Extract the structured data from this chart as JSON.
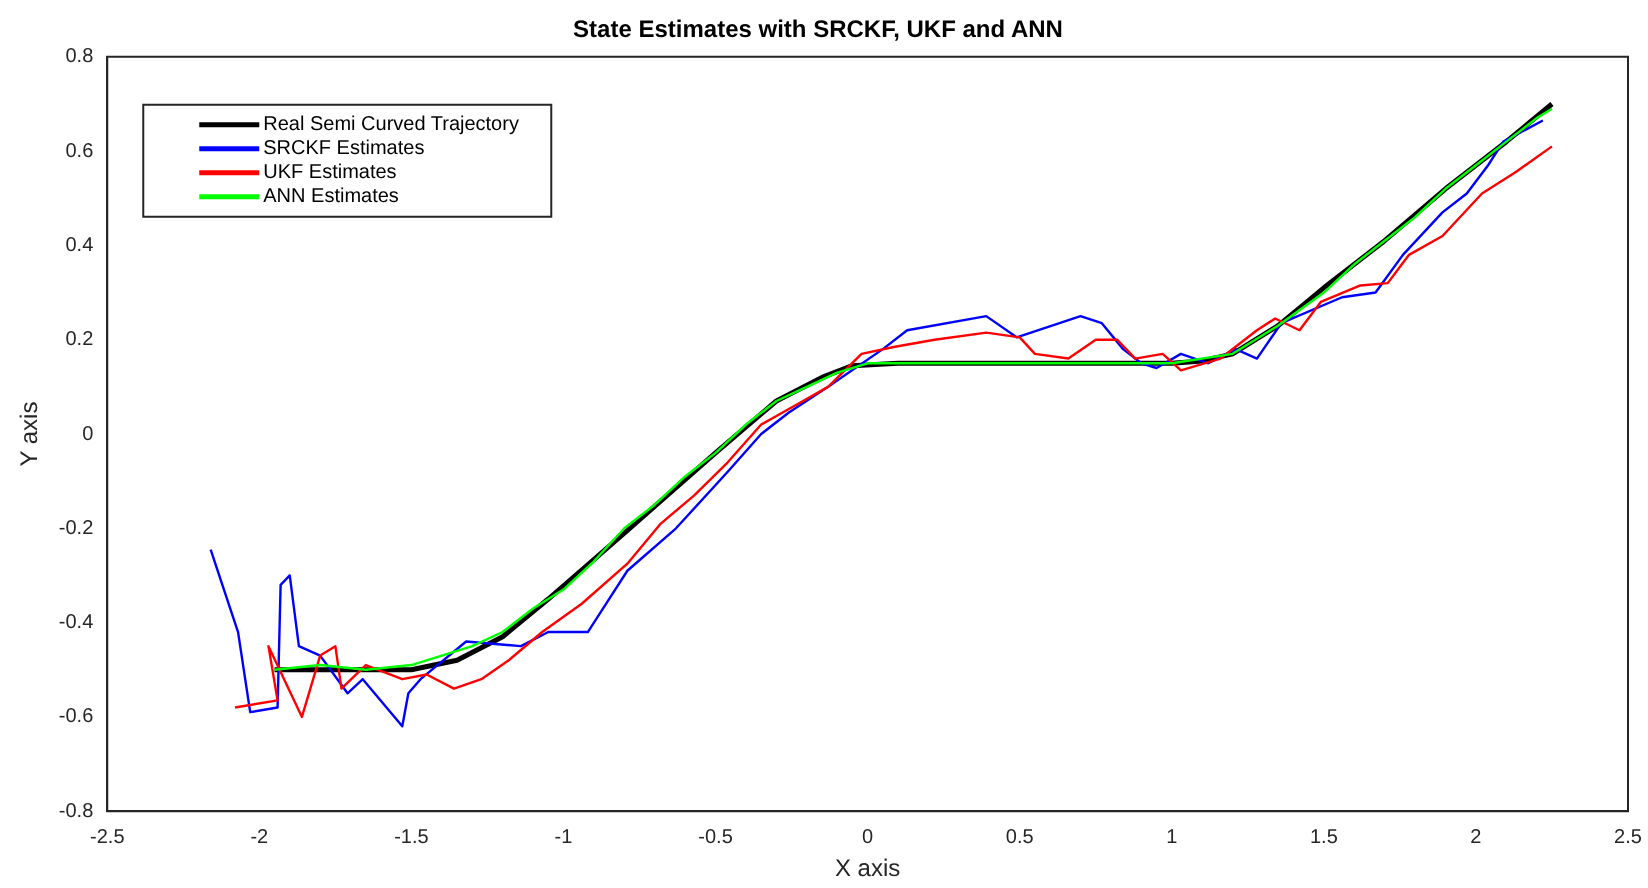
{
  "chart_data": {
    "type": "line",
    "title": "State Estimates with SRCKF, UKF and ANN",
    "xlabel": "X axis",
    "ylabel": "Y axis",
    "xlim": [
      -2.5,
      2.5
    ],
    "xticks": [
      -2.5,
      -2,
      -1.5,
      -1,
      -0.5,
      0,
      0.5,
      1,
      1.5,
      2,
      2.5
    ],
    "ylim": [
      -0.8,
      0.8
    ],
    "yticks": [
      -0.8,
      -0.6,
      -0.4,
      -0.2,
      0,
      0.2,
      0.4,
      0.6,
      0.8
    ],
    "grid": false,
    "legend": "top left",
    "marker": "none",
    "line_style": "solid",
    "series": [
      {
        "name": "Real Semi Curved Trajectory",
        "color": "#000000",
        "x": [
          -1.95,
          -1.5,
          -1.35,
          -1.2,
          -1.05,
          -0.8,
          -0.5,
          -0.3,
          -0.15,
          -0.05,
          0.1,
          1.0,
          1.1,
          1.2,
          1.35,
          1.5,
          1.7,
          1.9,
          2.1,
          2.25
        ],
        "values": [
          -0.5,
          -0.5,
          -0.48,
          -0.43,
          -0.35,
          -0.21,
          -0.04,
          0.07,
          0.12,
          0.145,
          0.15,
          0.15,
          0.155,
          0.17,
          0.23,
          0.31,
          0.41,
          0.52,
          0.62,
          0.7
        ]
      },
      {
        "name": "SRCKF Estimates",
        "color": "#0000ff",
        "x": [
          -2.16,
          -2.07,
          -2.03,
          -1.94,
          -1.93,
          -1.9,
          -1.87,
          -1.8,
          -1.71,
          -1.66,
          -1.53,
          -1.51,
          -1.47,
          -1.32,
          -1.14,
          -1.05,
          -0.92,
          -0.875,
          -0.79,
          -0.63,
          -0.46,
          -0.35,
          -0.26,
          -0.13,
          0.05,
          0.13,
          0.39,
          0.49,
          0.7,
          0.77,
          0.84,
          0.9,
          0.95,
          1.03,
          1.12,
          1.21,
          1.28,
          1.36,
          1.56,
          1.67,
          1.76,
          1.89,
          1.97,
          2.04,
          2.09,
          2.22
        ],
        "values": [
          -0.245,
          -0.42,
          -0.59,
          -0.58,
          -0.32,
          -0.3,
          -0.45,
          -0.47,
          -0.55,
          -0.52,
          -0.62,
          -0.55,
          -0.52,
          -0.44,
          -0.45,
          -0.42,
          -0.42,
          -0.375,
          -0.29,
          -0.2,
          -0.08,
          0.0,
          0.045,
          0.1,
          0.18,
          0.22,
          0.25,
          0.205,
          0.25,
          0.235,
          0.18,
          0.15,
          0.14,
          0.17,
          0.15,
          0.18,
          0.16,
          0.235,
          0.29,
          0.3,
          0.38,
          0.47,
          0.51,
          0.57,
          0.62,
          0.665
        ]
      },
      {
        "name": "UKF Estimates",
        "color": "#ff0000",
        "x": [
          -2.08,
          -1.94,
          -1.97,
          -1.86,
          -1.8,
          -1.75,
          -1.73,
          -1.65,
          -1.53,
          -1.45,
          -1.36,
          -1.27,
          -1.18,
          -1.07,
          -0.94,
          -0.79,
          -0.68,
          -0.57,
          -0.46,
          -0.35,
          -0.24,
          -0.13,
          -0.02,
          0.09,
          0.22,
          0.39,
          0.5,
          0.55,
          0.66,
          0.75,
          0.82,
          0.88,
          0.97,
          1.03,
          1.16,
          1.28,
          1.34,
          1.42,
          1.49,
          1.62,
          1.71,
          1.78,
          1.89,
          2.02,
          2.13,
          2.25
        ],
        "values": [
          -0.58,
          -0.565,
          -0.45,
          -0.6,
          -0.47,
          -0.45,
          -0.54,
          -0.49,
          -0.52,
          -0.51,
          -0.54,
          -0.52,
          -0.48,
          -0.42,
          -0.36,
          -0.275,
          -0.19,
          -0.13,
          -0.06,
          0.02,
          0.06,
          0.1,
          0.17,
          0.185,
          0.2,
          0.215,
          0.205,
          0.17,
          0.16,
          0.2,
          0.2,
          0.16,
          0.17,
          0.135,
          0.16,
          0.22,
          0.245,
          0.22,
          0.28,
          0.315,
          0.32,
          0.38,
          0.42,
          0.51,
          0.555,
          0.61
        ]
      },
      {
        "name": "ANN Estimates",
        "color": "#00ff00",
        "x": [
          -1.95,
          -1.8,
          -1.65,
          -1.5,
          -1.4,
          -1.3,
          -1.2,
          -1.1,
          -1.0,
          -0.9,
          -0.8,
          -0.7,
          -0.6,
          -0.5,
          -0.4,
          -0.3,
          -0.2,
          -0.1,
          0.0,
          0.2,
          0.4,
          0.6,
          0.8,
          1.0,
          1.2,
          1.35,
          1.5,
          1.6,
          1.7,
          1.8,
          1.9,
          2.0,
          2.1,
          2.2,
          2.25
        ],
        "values": [
          -0.5,
          -0.49,
          -0.5,
          -0.49,
          -0.47,
          -0.45,
          -0.42,
          -0.37,
          -0.33,
          -0.27,
          -0.2,
          -0.15,
          -0.09,
          -0.04,
          0.02,
          0.07,
          0.1,
          0.13,
          0.15,
          0.15,
          0.15,
          0.15,
          0.15,
          0.15,
          0.17,
          0.23,
          0.3,
          0.36,
          0.41,
          0.46,
          0.52,
          0.57,
          0.62,
          0.67,
          0.69
        ]
      }
    ]
  }
}
